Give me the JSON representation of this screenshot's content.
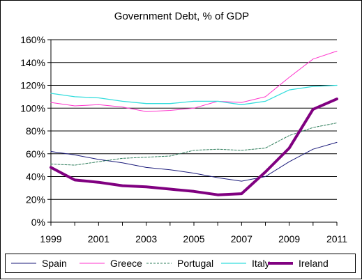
{
  "chart_data": {
    "type": "line",
    "title": "Government Debt, % of GDP",
    "xlabel": "",
    "ylabel": "",
    "x": [
      1999,
      2000,
      2001,
      2002,
      2003,
      2004,
      2005,
      2006,
      2007,
      2008,
      2009,
      2010,
      2011
    ],
    "xticks": [
      "1999",
      "2001",
      "2003",
      "2005",
      "2007",
      "2009",
      "2011"
    ],
    "yticks": [
      "0%",
      "20%",
      "40%",
      "60%",
      "80%",
      "100%",
      "120%",
      "140%",
      "160%"
    ],
    "ylim": [
      0,
      160
    ],
    "grid": "horizontal",
    "legend": "bottom",
    "series": [
      {
        "name": "Spain",
        "color": "#1a1a7a",
        "style": "solid",
        "width": 1,
        "values": [
          62,
          59,
          55,
          52,
          48,
          46,
          43,
          39,
          36,
          40,
          53,
          64,
          70
        ]
      },
      {
        "name": "Greece",
        "color": "#ff33cc",
        "style": "solid",
        "width": 1,
        "values": [
          105,
          102,
          103,
          101,
          97,
          98,
          100,
          106,
          105,
          110,
          127,
          143,
          150
        ]
      },
      {
        "name": "Portugal",
        "color": "#2e7d5b",
        "style": "dashed",
        "width": 1,
        "values": [
          51,
          50,
          53,
          56,
          57,
          58,
          63,
          64,
          63,
          65,
          76,
          83,
          87
        ]
      },
      {
        "name": "Italy",
        "color": "#33dddd",
        "style": "solid",
        "width": 1.3,
        "values": [
          113,
          110,
          109,
          106,
          104,
          104,
          106,
          106,
          103,
          106,
          116,
          119,
          120
        ]
      },
      {
        "name": "Ireland",
        "color": "#800080",
        "style": "solid",
        "width": 4,
        "values": [
          48,
          37,
          35,
          32,
          31,
          29,
          27,
          24,
          25,
          44,
          65,
          99,
          108
        ]
      }
    ]
  }
}
